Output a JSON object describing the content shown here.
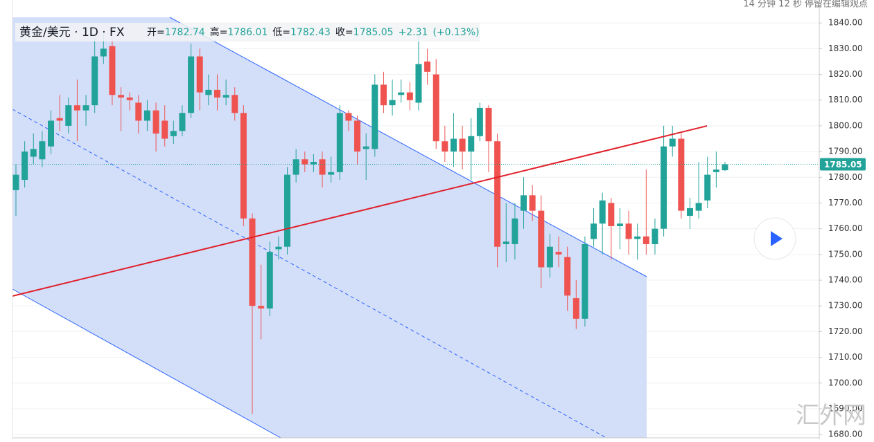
{
  "chart_data": {
    "type": "candlestick",
    "title": "黄金/美元 · 1D · FX",
    "status_text": "14 分钟 12 秒 停留在编辑观点",
    "watermark": "汇外网",
    "header": {
      "open_label": "开=",
      "open": 1782.74,
      "high_label": "高=",
      "high": 1786.01,
      "low_label": "低=",
      "low": 1782.43,
      "close_label": "收=",
      "close": 1785.05,
      "change": {
        "value": 2.31,
        "label": "+2.31"
      },
      "change_pct": {
        "value": 0.13,
        "label": "(+0.13%)"
      }
    },
    "up_color": "#22a39a",
    "down_color": "#ef5350",
    "ylim": [
      1678.7,
      1842.2
    ],
    "yticks": [
      {
        "value": 1680,
        "label": "1680.00"
      },
      {
        "value": 1690,
        "label": "1690.00"
      },
      {
        "value": 1700,
        "label": "1700.00"
      },
      {
        "value": 1710,
        "label": "1710.00"
      },
      {
        "value": 1720,
        "label": "1720.00"
      },
      {
        "value": 1730,
        "label": "1730.00"
      },
      {
        "value": 1740,
        "label": "1740.00"
      },
      {
        "value": 1750,
        "label": "1750.00"
      },
      {
        "value": 1760,
        "label": "1760.00"
      },
      {
        "value": 1770,
        "label": "1770.00"
      },
      {
        "value": 1780,
        "label": "1780.00"
      },
      {
        "value": 1790,
        "label": "1790.00"
      },
      {
        "value": 1800,
        "label": "1800.00"
      },
      {
        "value": 1810,
        "label": "1810.00"
      },
      {
        "value": 1820,
        "label": "1820.00"
      },
      {
        "value": 1830,
        "label": "1830.00"
      },
      {
        "value": 1840,
        "label": "1840.00"
      }
    ],
    "grid": true,
    "open": [
      1775,
      1779,
      1788,
      1787,
      1792,
      1803,
      1800,
      1808,
      1806,
      1808,
      1827,
      1831,
      1812,
      1811,
      1809,
      1802,
      1806,
      1802,
      1796,
      1798,
      1805,
      1827,
      1812,
      1814,
      1811,
      1812,
      1805,
      1764,
      1730,
      1729,
      1752,
      1753,
      1781,
      1787,
      1785,
      1787,
      1781,
      1782,
      1805,
      1802,
      1791,
      1791,
      1816,
      1808,
      1812,
      1813,
      1809,
      1825,
      1820,
      1794,
      1790,
      1795,
      1790,
      1796,
      1807,
      1794,
      1754,
      1754,
      1767,
      1773,
      1767,
      1745,
      1751,
      1749,
      1733,
      1725,
      1756,
      1762,
      1770,
      1761,
      1762,
      1756,
      1757,
      1754,
      1760,
      1792,
      1795,
      1765,
      1767,
      1771,
      1782,
      1782.74
    ],
    "high": [
      1785,
      1794,
      1797,
      1798,
      1806,
      1812,
      1811,
      1818,
      1812,
      1834,
      1837,
      1834,
      1815,
      1813,
      1812,
      1810,
      1809,
      1808,
      1802,
      1808,
      1832,
      1830,
      1820,
      1820,
      1818,
      1815,
      1808,
      1766,
      1746,
      1755,
      1757,
      1784,
      1791,
      1790,
      1789,
      1790,
      1788,
      1808,
      1806,
      1804,
      1797,
      1820,
      1821,
      1818,
      1818,
      1817,
      1835,
      1830,
      1826,
      1800,
      1805,
      1800,
      1803,
      1809,
      1808,
      1797,
      1770,
      1770,
      1780,
      1777,
      1773,
      1758,
      1757,
      1753,
      1740,
      1757,
      1768,
      1774,
      1772,
      1768,
      1767,
      1762,
      1783,
      1764,
      1800,
      1800,
      1797,
      1772,
      1786,
      1788,
      1790,
      1786.01
    ],
    "low": [
      1765,
      1776,
      1785,
      1784,
      1789,
      1798,
      1797,
      1794,
      1800,
      1805,
      1824,
      1808,
      1798,
      1806,
      1797,
      1798,
      1790,
      1792,
      1793,
      1796,
      1803,
      1806,
      1808,
      1806,
      1808,
      1802,
      1761,
      1688,
      1717,
      1726,
      1748,
      1750,
      1778,
      1782,
      1782,
      1776,
      1778,
      1779,
      1798,
      1785,
      1779,
      1788,
      1805,
      1804,
      1809,
      1806,
      1806,
      1816,
      1791,
      1786,
      1784,
      1783,
      1779,
      1794,
      1782,
      1745,
      1747,
      1748,
      1760,
      1763,
      1737,
      1741,
      1745,
      1728,
      1721,
      1722,
      1753,
      1750,
      1748,
      1752,
      1750,
      1748,
      1750,
      1750,
      1757,
      1788,
      1764,
      1760,
      1764,
      1768,
      1776,
      1782.43
    ],
    "close": [
      1781,
      1790,
      1791,
      1794,
      1802,
      1802,
      1808,
      1806,
      1808,
      1827,
      1830,
      1812,
      1811,
      1810,
      1802,
      1806,
      1797,
      1795,
      1798,
      1805,
      1827,
      1813,
      1814,
      1811,
      1812,
      1805,
      1764,
      1730,
      1729,
      1751,
      1753,
      1781,
      1787,
      1785,
      1786,
      1781,
      1782,
      1805,
      1802,
      1790,
      1792,
      1816,
      1808,
      1810,
      1813,
      1810,
      1824,
      1821,
      1794,
      1790,
      1795,
      1790,
      1796,
      1807,
      1794,
      1753,
      1755,
      1764,
      1773,
      1767,
      1745,
      1753,
      1750,
      1734,
      1725,
      1754,
      1762,
      1771,
      1761,
      1762,
      1756,
      1757,
      1754,
      1760,
      1792,
      1795,
      1767,
      1768,
      1770,
      1781,
      1783,
      1785.05
    ]
  }
}
